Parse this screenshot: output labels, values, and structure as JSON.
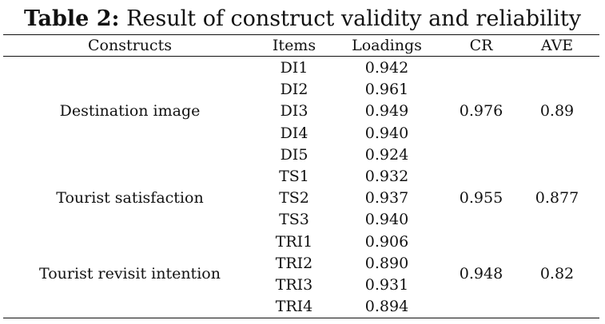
{
  "caption": {
    "label": "Table 2:",
    "title": " Result of construct validity and reliability"
  },
  "headers": {
    "constructs": "Constructs",
    "items": "Items",
    "loadings": "Loadings",
    "cr": "CR",
    "ave": "AVE"
  },
  "groups": [
    {
      "construct": "Destination image",
      "cr": "0.976",
      "ave": "0.89",
      "rows": [
        {
          "item": "DI1",
          "loading": "0.942"
        },
        {
          "item": "DI2",
          "loading": "0.961"
        },
        {
          "item": "DI3",
          "loading": "0.949"
        },
        {
          "item": "DI4",
          "loading": "0.940"
        },
        {
          "item": "DI5",
          "loading": "0.924"
        }
      ]
    },
    {
      "construct": "Tourist satisfaction",
      "cr": "0.955",
      "ave": "0.877",
      "rows": [
        {
          "item": "TS1",
          "loading": "0.932"
        },
        {
          "item": "TS2",
          "loading": "0.937"
        },
        {
          "item": "TS3",
          "loading": "0.940"
        }
      ]
    },
    {
      "construct": "Tourist revisit intention",
      "cr": "0.948",
      "ave": "0.82",
      "rows": [
        {
          "item": "TRI1",
          "loading": "0.906"
        },
        {
          "item": "TRI2",
          "loading": "0.890"
        },
        {
          "item": "TRI3",
          "loading": "0.931"
        },
        {
          "item": "TRI4",
          "loading": "0.894"
        }
      ]
    }
  ]
}
